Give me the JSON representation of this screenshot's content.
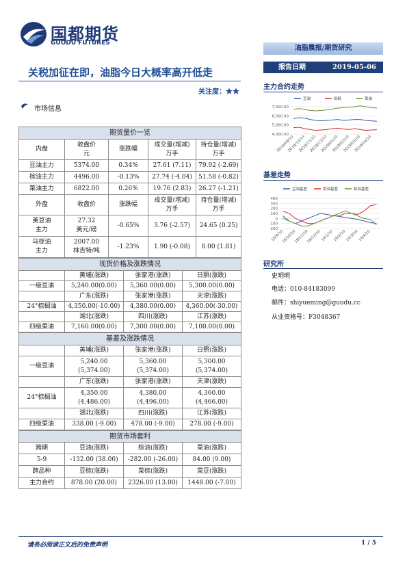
{
  "header": {
    "logo_cn": "国都期货",
    "logo_en": "GUODU FUTURES",
    "series_tag": "油脂晨报/期货研究"
  },
  "report": {
    "title": "关税加征在即，油脂今日大概率高开低走",
    "attention_label": "关注度：",
    "attention_stars": "★★",
    "date_label": "报告日期",
    "date": "2019-05-06"
  },
  "market_info": {
    "heading": "市场信息",
    "futures": {
      "title": "期货量价一览",
      "inner_header": [
        "内盘",
        [
          "收盘价",
          "元"
        ],
        "涨跌幅",
        [
          "成交量(增减)",
          "万手"
        ],
        [
          "持仓量(增减)",
          "万手"
        ]
      ],
      "inner_rows": [
        [
          "豆油主力",
          "5374.00",
          "0.34%",
          "27.61 (7.11)",
          "79.92 (-2.69)"
        ],
        [
          "棕油主力",
          "4496.00",
          "-0.13%",
          "27.74 (-4.04)",
          "51.58 (-0.82)"
        ],
        [
          "菜油主力",
          "6822.00",
          "0.26%",
          "19.76 (2.83)",
          "26.27 (-1.21)"
        ]
      ],
      "outer_header": [
        "外盘",
        "收盘价",
        "涨跌幅",
        [
          "成交量(增减)",
          "万手"
        ],
        [
          "持仓量(增减)",
          "万手"
        ]
      ],
      "outer_rows": [
        [
          [
            "美豆油",
            "主力"
          ],
          [
            "27.32",
            "美元/磅"
          ],
          "-0.65%",
          "3.76 (-2.57)",
          "24.65 (0.25)"
        ],
        [
          [
            "马棕油",
            "主力"
          ],
          [
            "2007.00",
            "林吉特/吨"
          ],
          "-1.23%",
          "1.90 (-0.08)",
          "8.00 (1.81)"
        ]
      ]
    },
    "spot": {
      "title": "现货价格及涨跌情况",
      "groups": [
        {
          "header": [
            "黄埔(涨跌)",
            "张家港(涨跌)",
            "日照(涨跌)"
          ],
          "label": "一级豆油",
          "values": [
            "5,240.00(0.00)",
            "5,360.00(0.00)",
            "5,300.00(0.00)"
          ]
        },
        {
          "header": [
            "广东(涨跌)",
            "张家港(涨跌)",
            "天津(涨跌)"
          ],
          "label": "24°棕榈油",
          "values": [
            "4,350.00(-10.00)",
            "4,380.00(0.00)",
            "4,360.00(-30.00)"
          ]
        },
        {
          "header": [
            "湖北(涨跌)",
            "四川(涨跌)",
            "江苏(涨跌)"
          ],
          "label": "四级菜油",
          "values": [
            "7,160.00(0.00)",
            "7,300.00(0.00)",
            "7,100.00(0.00)"
          ]
        }
      ]
    },
    "basis": {
      "title": "基差及涨跌情况",
      "groups": [
        {
          "header": [
            "黄埔(涨跌)",
            "张家港(涨跌)",
            "日照(涨跌)"
          ],
          "label": "一级豆油",
          "values": [
            [
              "5,240.00",
              "(5,374.00)"
            ],
            [
              "5,360.00",
              "(5,374.00)"
            ],
            [
              "5,300.00",
              "(5,374.00)"
            ]
          ]
        },
        {
          "header": [
            "广东(涨跌)",
            "张家港(涨跌)",
            "天津(涨跌)"
          ],
          "label": "24°棕榈油",
          "values": [
            [
              "4,350.00",
              "(4,486.00)"
            ],
            [
              "4,380.00",
              "(4,496.00)"
            ],
            [
              "4,360.00",
              "(4,466.00)"
            ]
          ]
        },
        {
          "header": [
            "湖北(涨跌)",
            "四川(涨跌)",
            "江苏(涨跌)"
          ],
          "label": "四级菜油",
          "values": [
            "338.00 (-9.00)",
            "478.00 (-9.00)",
            "278.00 (-9.00)"
          ]
        }
      ]
    },
    "arbitrage": {
      "title": "期货市场套利",
      "rows": [
        [
          "跨期",
          "豆油(涨跌)",
          "棕油(涨跌)",
          "菜油(涨跌)"
        ],
        [
          "5-9",
          "-132.00 (38.00)",
          "-282.00 (-26.00)",
          "84.00 (9.00)"
        ],
        [
          "跨品种",
          "豆棕(涨跌)",
          "菜棕(涨跌)",
          "菜豆(涨跌)"
        ],
        [
          "主力合约",
          "878.00 (20.00)",
          "2326.00 (13.00)",
          "1448.00 (-7.00)"
        ]
      ]
    }
  },
  "sidebar": {
    "main_trend": "主力合约走势",
    "basis_trend": "基差走势",
    "institute": "研究所",
    "analyst": "史玥明",
    "phone": "电话：010-84183099",
    "email": "邮件：shiyueming@guodu.cc",
    "license": "从业资格号：F3048367"
  },
  "footer": {
    "disclaimer": "请务必阅读正文后的免责声明",
    "page": "1 / 5"
  },
  "chart_data": [
    {
      "type": "line",
      "legend": "top",
      "categories": [
        "2018/09/10",
        null,
        "2018/10/10",
        null,
        "2018/11/10",
        null,
        "2018/12/10",
        null,
        "2019/01/10",
        null,
        "2019/02/10",
        null,
        "2019/03/10",
        null,
        "2019/04/10",
        null
      ],
      "series": [
        {
          "name": "豆油",
          "color": "#2e5fa8",
          "values": [
            5700,
            5800,
            5750,
            5600,
            5500,
            5450,
            5500,
            5550,
            5600,
            5500,
            5550,
            5600,
            5600,
            5500,
            5450,
            5400
          ]
        },
        {
          "name": "棕榈",
          "color": "#d9262a",
          "values": [
            4700,
            4750,
            4600,
            4500,
            4400,
            4450,
            4500,
            4600,
            4650,
            4550,
            4500,
            4600,
            4500,
            4400,
            4450,
            4480
          ]
        },
        {
          "name": "菜油",
          "color": "#6b8e3a",
          "values": [
            6700,
            6800,
            6700,
            6600,
            6550,
            6600,
            6650,
            6750,
            6850,
            6900,
            6950,
            7000,
            7100,
            7000,
            6900,
            6850
          ]
        }
      ],
      "ylim": [
        4000,
        7300
      ],
      "yticks": [
        {
          "value": 4000,
          "label": "4,000.00"
        },
        {
          "value": 5000,
          "label": "5,000.00"
        },
        {
          "value": 6000,
          "label": "6,000.00"
        },
        {
          "value": 7000,
          "label": "7,000.00"
        }
      ],
      "grid": true
    },
    {
      "type": "line",
      "legend": "top",
      "categories": [
        "18/9/10",
        null,
        "18/10/10",
        null,
        "18/11/10",
        null,
        "18/12/10",
        null,
        "19/1/10",
        null,
        "19/2/10",
        null,
        "19/3/10",
        null,
        "19/4/10",
        null
      ],
      "series": [
        {
          "name": "豆油基差",
          "color": "#2e5fa8",
          "values": [
            50,
            -50,
            -100,
            -50,
            0,
            50,
            100,
            80,
            60,
            40,
            20,
            0,
            -20,
            -50,
            -80,
            -100
          ]
        },
        {
          "name": "菜油基差",
          "color": "#d9262a",
          "values": [
            150,
            100,
            0,
            -50,
            -100,
            -100,
            -50,
            0,
            50,
            50,
            100,
            100,
            80,
            150,
            250,
            280
          ]
        },
        {
          "name": "棕油基差",
          "color": "#6b8e3a",
          "values": [
            0,
            -50,
            -100,
            -150,
            -150,
            -100,
            -50,
            0,
            50,
            100,
            150,
            100,
            50,
            0,
            -20,
            -130
          ]
        }
      ],
      "ylim": [
        -200,
        400
      ],
      "yticks": [
        -200,
        -100,
        0,
        100,
        200,
        300,
        400
      ],
      "grid": true
    }
  ]
}
